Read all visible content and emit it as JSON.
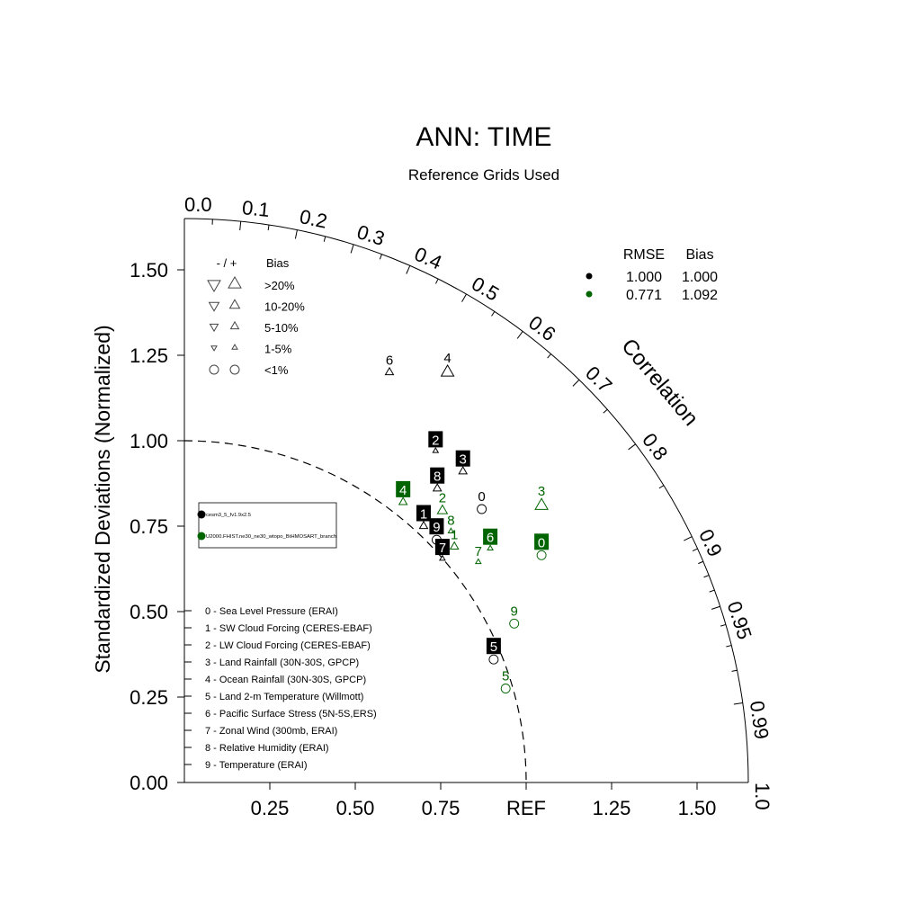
{
  "chart_data": {
    "type": "scatter",
    "subtype": "taylor-diagram",
    "title": "ANN: TIME",
    "subtitle": "Reference Grids Used",
    "ylabel": "Standardized Deviations (Normalized)",
    "arc_label": "Correlation",
    "ref_label": "REF",
    "ylim": [
      0,
      1.65
    ],
    "xlim": [
      0,
      1.65
    ],
    "y_ticks": [
      "0.00",
      "0.25",
      "0.50",
      "0.75",
      "1.00",
      "1.25",
      "1.50"
    ],
    "x_ticks": [
      "0.25",
      "0.50",
      "0.75",
      "REF",
      "1.25",
      "1.50"
    ],
    "corr_labels": [
      "0.0",
      "0.1",
      "0.2",
      "0.3",
      "0.4",
      "0.5",
      "0.6",
      "0.7",
      "0.8",
      "0.9",
      "0.95",
      "0.99",
      "1.0"
    ],
    "colors": {
      "case_black": "#000000",
      "case_green": "#006400"
    },
    "bias_legend": {
      "header_sign": "- / +",
      "header_bias": "Bias",
      "rows": [
        {
          "label": ">20%",
          "size": 14
        },
        {
          "label": "10-20%",
          "size": 11
        },
        {
          "label": "5-10%",
          "size": 9
        },
        {
          "label": "1-5%",
          "size": 6
        },
        {
          "label": "<1%",
          "size": 10
        }
      ]
    },
    "stats_legend": {
      "header_rmse": "RMSE",
      "header_bias": "Bias",
      "rows": [
        {
          "rmse": "1.000",
          "bias": "1.000",
          "color": "#000000"
        },
        {
          "rmse": "0.771",
          "bias": "1.092",
          "color": "#006400"
        }
      ]
    },
    "case_legend": [
      {
        "name": "cesm3_5_fv1.9x2.5",
        "color": "#000000"
      },
      {
        "name": "U2000.FHIST.ne30_ne30_wtopo_BtHMOSART_branch",
        "color": "#006400"
      }
    ],
    "variables": [
      "0 - Sea Level Pressure (ERAI)",
      "1 - SW Cloud Forcing (CERES-EBAF)",
      "2 - LW Cloud Forcing (CERES-EBAF)",
      "3 - Land Rainfall (30N-30S, GPCP)",
      "4 - Ocean Rainfall (30N-30S, GPCP)",
      "5 - Land 2-m Temperature (Willmott)",
      "6 - Pacific Surface Stress (5N-5S,ERS)",
      "7 - Zonal Wind (300mb, ERAI)",
      "8 - Relative Humidity (ERAI)",
      "9 - Temperature (ERAI)"
    ],
    "series": [
      {
        "name": "cesm3_5_fv1.9x2.5",
        "color": "#000000",
        "points": [
          {
            "id": "0",
            "x": 0.87,
            "y": 0.8,
            "marker": "circle",
            "size": 10,
            "label_style": "plain"
          },
          {
            "id": "1",
            "x": 0.7,
            "y": 0.75,
            "marker": "up",
            "size": 9,
            "label_style": "boxed"
          },
          {
            "id": "2",
            "x": 0.735,
            "y": 0.97,
            "marker": "up",
            "size": 6,
            "label_style": "boxed"
          },
          {
            "id": "3",
            "x": 0.815,
            "y": 0.91,
            "marker": "up",
            "size": 9,
            "label_style": "boxed"
          },
          {
            "id": "4",
            "x": 0.77,
            "y": 1.2,
            "marker": "up",
            "size": 14,
            "label_style": "plain"
          },
          {
            "id": "5",
            "x": 0.905,
            "y": 0.36,
            "marker": "circle",
            "size": 10,
            "label_style": "boxed"
          },
          {
            "id": "6",
            "x": 0.6,
            "y": 1.2,
            "marker": "up",
            "size": 9,
            "label_style": "plain"
          },
          {
            "id": "7",
            "x": 0.755,
            "y": 0.655,
            "marker": "up",
            "size": 6,
            "label_style": "boxed"
          },
          {
            "id": "8",
            "x": 0.74,
            "y": 0.86,
            "marker": "up",
            "size": 9,
            "label_style": "boxed"
          },
          {
            "id": "9",
            "x": 0.738,
            "y": 0.71,
            "marker": "circle",
            "size": 10,
            "label_style": "boxed"
          }
        ]
      },
      {
        "name": "U2000.FHIST.ne30_ne30_wtopo_BtHMOSART_branch",
        "color": "#006400",
        "points": [
          {
            "id": "0",
            "x": 1.045,
            "y": 0.665,
            "marker": "circle",
            "size": 10,
            "label_style": "boxed"
          },
          {
            "id": "1",
            "x": 0.79,
            "y": 0.69,
            "marker": "up",
            "size": 9,
            "label_style": "plain"
          },
          {
            "id": "2",
            "x": 0.755,
            "y": 0.795,
            "marker": "up",
            "size": 11,
            "label_style": "plain"
          },
          {
            "id": "3",
            "x": 1.045,
            "y": 0.81,
            "marker": "up",
            "size": 14,
            "label_style": "plain"
          },
          {
            "id": "4",
            "x": 0.64,
            "y": 0.82,
            "marker": "up",
            "size": 9,
            "label_style": "boxed"
          },
          {
            "id": "5",
            "x": 0.94,
            "y": 0.275,
            "marker": "circle",
            "size": 10,
            "label_style": "plain"
          },
          {
            "id": "6",
            "x": 0.895,
            "y": 0.685,
            "marker": "up",
            "size": 6,
            "label_style": "boxed"
          },
          {
            "id": "7",
            "x": 0.86,
            "y": 0.645,
            "marker": "up",
            "size": 6,
            "label_style": "plain"
          },
          {
            "id": "8",
            "x": 0.78,
            "y": 0.735,
            "marker": "up",
            "size": 6,
            "label_style": "plain"
          },
          {
            "id": "9",
            "x": 0.965,
            "y": 0.465,
            "marker": "circle",
            "size": 10,
            "label_style": "plain"
          }
        ]
      }
    ]
  }
}
